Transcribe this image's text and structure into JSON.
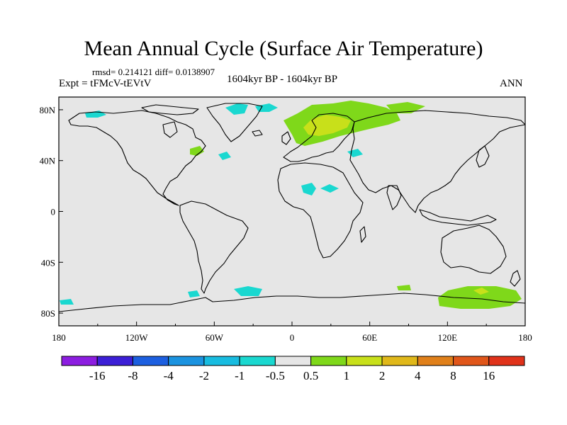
{
  "title": "Mean Annual Cycle (Surface Air Temperature)",
  "stats": "rmsd= 0.214121 diff= 0.0138907",
  "experiment": "Expt = tFMcV-tEVtV",
  "period": "1604kyr BP - 1604kyr BP",
  "season": "ANN",
  "map": {
    "projection": "cylindrical equidistant",
    "lon_range": [
      -180,
      180
    ],
    "lat_range": [
      -90,
      90
    ],
    "x_ticks": [
      "180",
      "120W",
      "60W",
      "0",
      "60E",
      "120E",
      "180"
    ],
    "y_ticks": [
      "80N",
      "40N",
      "0",
      "40S",
      "80S"
    ],
    "background_color": "#e6e6e6"
  },
  "colorbar": {
    "colors": [
      "#8c1de0",
      "#3c1fd6",
      "#1c5fe0",
      "#1b93e0",
      "#18bce0",
      "#1ad8d0",
      "#e6e6e6",
      "#7fd81a",
      "#c8e01a",
      "#e0b81a",
      "#e0801a",
      "#e0561a",
      "#e0321a"
    ],
    "labels": [
      "-16",
      "-8",
      "-4",
      "-2",
      "-1",
      "-0.5",
      "0.5",
      "1",
      "2",
      "4",
      "8",
      "16"
    ]
  },
  "anomaly_regions": [
    {
      "name": "Scandinavia / NW Russia",
      "sign": "positive",
      "level": "1 to 2"
    },
    {
      "name": "Antarctica (East)",
      "sign": "positive",
      "level": "0.5 to 1"
    },
    {
      "name": "Greenland",
      "sign": "negative",
      "level": "-1 to -0.5"
    },
    {
      "name": "North Africa",
      "sign": "negative",
      "level": "-1 to -0.5"
    },
    {
      "name": "Southern Ocean",
      "sign": "negative",
      "level": "-1 to -0.5"
    }
  ]
}
